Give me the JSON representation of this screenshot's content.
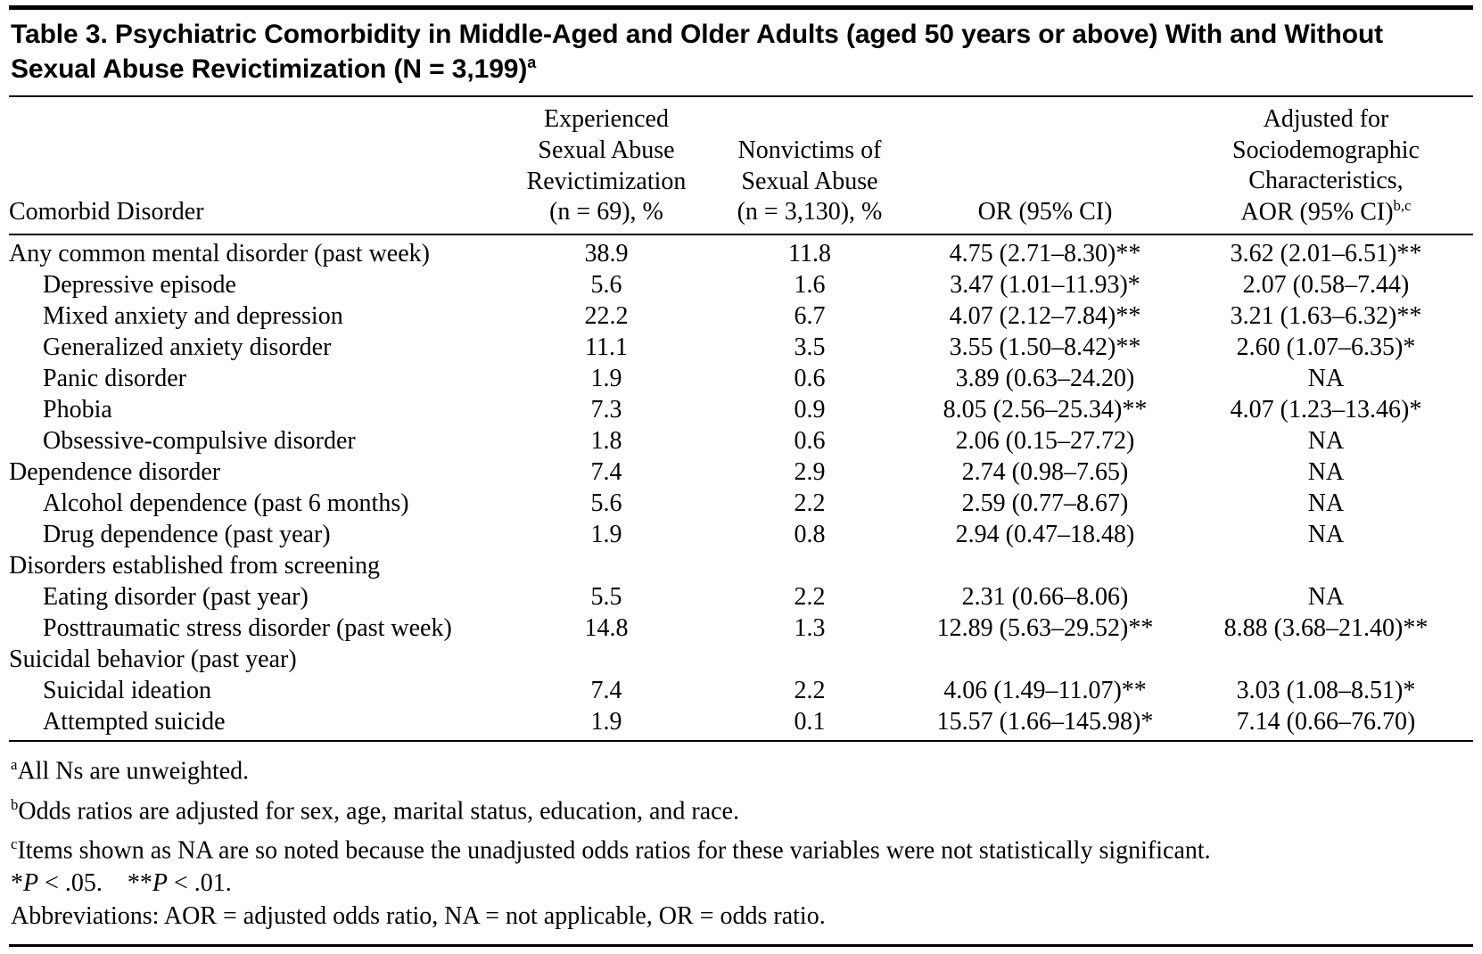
{
  "page": {
    "background": "#ffffff",
    "text_color": "#000000"
  },
  "title": {
    "text": "Table 3. Psychiatric Comorbidity in Middle-Aged and Older Adults (aged 50 years or above) With and Without Sexual Abuse Revictimization (N = 3,199)",
    "superscript": "a"
  },
  "table": {
    "headers": {
      "label": "Comorbid Disorder",
      "revictimization": "Experienced\nSexual Abuse\nRevictimization\n(n = 69), %",
      "nonvictims": "Nonvictims of\nSexual Abuse\n(n = 3,130), %",
      "or": "OR (95% CI)",
      "aor_top": "Adjusted for\nSociodemographic\nCharacteristics,",
      "aor_bottom": "AOR (95% CI)",
      "aor_superscript": "b,c"
    },
    "rows": [
      {
        "indent": false,
        "label": "Any common mental disorder (past week)",
        "revictim_pct": "38.9",
        "nonvictim_pct": "11.8",
        "or_ci": "4.75 (2.71–8.30)**",
        "aor_ci": "3.62 (2.01–6.51)**"
      },
      {
        "indent": true,
        "label": "Depressive episode",
        "revictim_pct": "5.6",
        "nonvictim_pct": "1.6",
        "or_ci": "3.47 (1.01–11.93)*",
        "aor_ci": "2.07 (0.58–7.44)"
      },
      {
        "indent": true,
        "label": "Mixed anxiety and depression",
        "revictim_pct": "22.2",
        "nonvictim_pct": "6.7",
        "or_ci": "4.07 (2.12–7.84)**",
        "aor_ci": "3.21 (1.63–6.32)**"
      },
      {
        "indent": true,
        "label": "Generalized anxiety disorder",
        "revictim_pct": "11.1",
        "nonvictim_pct": "3.5",
        "or_ci": "3.55 (1.50–8.42)**",
        "aor_ci": "2.60 (1.07–6.35)*"
      },
      {
        "indent": true,
        "label": "Panic disorder",
        "revictim_pct": "1.9",
        "nonvictim_pct": "0.6",
        "or_ci": "3.89 (0.63–24.20)",
        "aor_ci": "NA"
      },
      {
        "indent": true,
        "label": "Phobia",
        "revictim_pct": "7.3",
        "nonvictim_pct": "0.9",
        "or_ci": "8.05 (2.56–25.34)**",
        "aor_ci": "4.07 (1.23–13.46)*"
      },
      {
        "indent": true,
        "label": "Obsessive-compulsive disorder",
        "revictim_pct": "1.8",
        "nonvictim_pct": "0.6",
        "or_ci": "2.06 (0.15–27.72)",
        "aor_ci": "NA"
      },
      {
        "indent": false,
        "label": "Dependence disorder",
        "revictim_pct": "7.4",
        "nonvictim_pct": "2.9",
        "or_ci": "2.74 (0.98–7.65)",
        "aor_ci": "NA"
      },
      {
        "indent": true,
        "label": "Alcohol dependence (past 6 months)",
        "revictim_pct": "5.6",
        "nonvictim_pct": "2.2",
        "or_ci": "2.59 (0.77–8.67)",
        "aor_ci": "NA"
      },
      {
        "indent": true,
        "label": "Drug dependence (past year)",
        "revictim_pct": "1.9",
        "nonvictim_pct": "0.8",
        "or_ci": "2.94 (0.47–18.48)",
        "aor_ci": "NA"
      },
      {
        "indent": false,
        "label": "Disorders established from screening",
        "revictim_pct": "",
        "nonvictim_pct": "",
        "or_ci": "",
        "aor_ci": ""
      },
      {
        "indent": true,
        "label": "Eating disorder (past year)",
        "revictim_pct": "5.5",
        "nonvictim_pct": "2.2",
        "or_ci": "2.31 (0.66–8.06)",
        "aor_ci": "NA"
      },
      {
        "indent": true,
        "label": "Posttraumatic stress disorder (past week)",
        "revictim_pct": "14.8",
        "nonvictim_pct": "1.3",
        "or_ci": "12.89 (5.63–29.52)**",
        "aor_ci": "8.88 (3.68–21.40)**"
      },
      {
        "indent": false,
        "label": "Suicidal behavior (past year)",
        "revictim_pct": "",
        "nonvictim_pct": "",
        "or_ci": "",
        "aor_ci": ""
      },
      {
        "indent": true,
        "label": "Suicidal ideation",
        "revictim_pct": "7.4",
        "nonvictim_pct": "2.2",
        "or_ci": "4.06 (1.49–11.07)**",
        "aor_ci": "3.03 (1.08–8.51)*"
      },
      {
        "indent": true,
        "label": "Attempted suicide",
        "revictim_pct": "1.9",
        "nonvictim_pct": "0.1",
        "or_ci": "15.57 (1.66–145.98)*",
        "aor_ci": "7.14 (0.66–76.70)"
      }
    ]
  },
  "footnotes": {
    "a": {
      "marker": "a",
      "text": "All Ns are unweighted."
    },
    "b": {
      "marker": "b",
      "text": "Odds ratios are adjusted for sex, age, marital status, education, and race."
    },
    "c": {
      "marker": "c",
      "text": "Items shown as NA are so noted because the unadjusted odds ratios for these variables were not statistically significant."
    },
    "significance": {
      "star1": "*",
      "p1": "P",
      "mid": " < .05. **",
      "p2": "P",
      "end": " < .01."
    },
    "abbreviations": "Abbreviations: AOR = adjusted odds ratio, NA = not applicable, OR = odds ratio."
  }
}
